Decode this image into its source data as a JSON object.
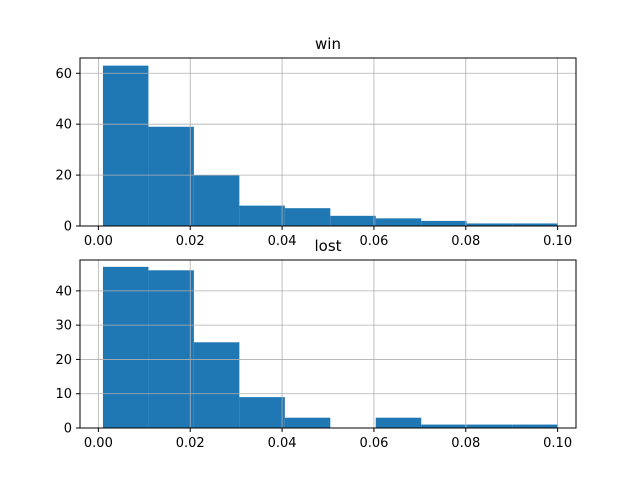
{
  "chart_data": [
    {
      "type": "bar",
      "title": "win",
      "bar_color": "#1f77b4",
      "grid": true,
      "xlim": [
        -0.004,
        0.104
      ],
      "ylim": [
        0,
        66
      ],
      "xticks": [
        0.0,
        0.02,
        0.04,
        0.06,
        0.08,
        0.1
      ],
      "xtick_labels": [
        "0.00",
        "0.02",
        "0.04",
        "0.06",
        "0.08",
        "0.10"
      ],
      "yticks": [
        0,
        20,
        40,
        60
      ],
      "ytick_labels": [
        "0",
        "20",
        "40",
        "60"
      ],
      "bin_edges": [
        0.001,
        0.0109,
        0.0208,
        0.0307,
        0.0406,
        0.0505,
        0.0604,
        0.0703,
        0.0802,
        0.0901,
        0.1
      ],
      "values": [
        63,
        39,
        20,
        8,
        7,
        4,
        3,
        2,
        1,
        1
      ]
    },
    {
      "type": "bar",
      "title": "lost",
      "bar_color": "#1f77b4",
      "grid": true,
      "xlim": [
        -0.004,
        0.104
      ],
      "ylim": [
        0,
        49
      ],
      "xticks": [
        0.0,
        0.02,
        0.04,
        0.06,
        0.08,
        0.1
      ],
      "xtick_labels": [
        "0.00",
        "0.02",
        "0.04",
        "0.06",
        "0.08",
        "0.10"
      ],
      "yticks": [
        0,
        10,
        20,
        30,
        40
      ],
      "ytick_labels": [
        "0",
        "10",
        "20",
        "30",
        "40"
      ],
      "bin_edges": [
        0.001,
        0.0109,
        0.0208,
        0.0307,
        0.0406,
        0.0505,
        0.0604,
        0.0703,
        0.0802,
        0.0901,
        0.1
      ],
      "values": [
        47,
        46,
        25,
        9,
        3,
        0,
        3,
        1,
        1,
        1
      ]
    }
  ]
}
